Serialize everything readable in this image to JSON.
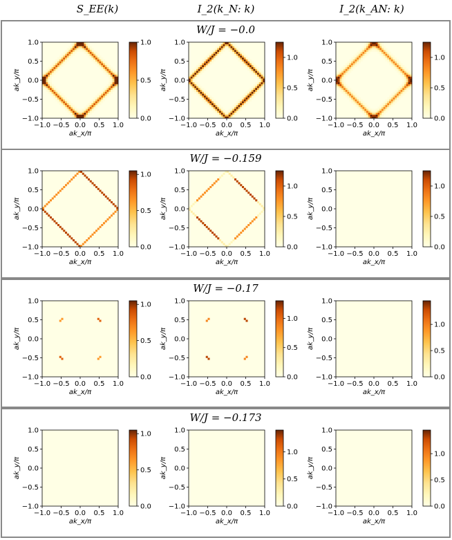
{
  "column_headers": [
    "S_EE(k)",
    "I_2(k_N: k)",
    "I_2(k_AN: k)"
  ],
  "colors": {
    "frame": "#888888",
    "cmap_low": "#ffffe5",
    "cmap_high": "#662506"
  },
  "chart_data": [
    {
      "type": "heatmap",
      "row_title": "W/J = −0.0",
      "panels": [
        {
          "column": "S_EE(k)",
          "pattern": "full_diamond",
          "hot_spots": "corners",
          "edge_level": 0.75,
          "vmax": 1.0,
          "colorbar_ticks": [
            "0.0",
            "0.5",
            "1.0"
          ]
        },
        {
          "column": "I_2(k_N: k)",
          "pattern": "full_diamond",
          "hot_spots": "edges",
          "edge_level": 0.9,
          "vmax": 1.25,
          "colorbar_ticks": [
            "0.0",
            "0.5",
            "1.0"
          ]
        },
        {
          "column": "I_2(k_AN: k)",
          "pattern": "full_diamond",
          "hot_spots": "corners",
          "edge_level": 0.6,
          "vmax": 1.25,
          "colorbar_ticks": [
            "0.0",
            "0.5",
            "1.0"
          ]
        }
      ]
    },
    {
      "type": "heatmap",
      "row_title": "W/J = −0.159",
      "panels": [
        {
          "column": "S_EE(k)",
          "pattern": "thin_diamond",
          "edge_level": 0.9,
          "vmax": 1.05,
          "colorbar_ticks": [
            "0.0",
            "0.5",
            "1.0"
          ]
        },
        {
          "column": "I_2(k_N: k)",
          "pattern": "thin_diamond_segments",
          "edge_level": 0.9,
          "vmax": 1.25,
          "colorbar_ticks": [
            "0.0",
            "0.5",
            "1.0"
          ]
        },
        {
          "column": "I_2(k_AN: k)",
          "pattern": "empty",
          "vmax": 1.25,
          "colorbar_ticks": [
            "0.0",
            "0.5",
            "1.0"
          ]
        }
      ]
    },
    {
      "type": "heatmap",
      "row_title": "W/J = −0.17",
      "panels": [
        {
          "column": "S_EE(k)",
          "pattern": "nodal_points",
          "edge_level": 0.8,
          "vmax": 1.05,
          "colorbar_ticks": [
            "0.0",
            "0.5",
            "1.0"
          ]
        },
        {
          "column": "I_2(k_N: k)",
          "pattern": "nodal_points",
          "edge_level": 0.9,
          "vmax": 1.3,
          "colorbar_ticks": [
            "0.0",
            "0.5",
            "1.0"
          ]
        },
        {
          "column": "I_2(k_AN: k)",
          "pattern": "empty",
          "vmax": 1.45,
          "colorbar_ticks": [
            "0.0",
            "0.5",
            "1.0"
          ]
        }
      ]
    },
    {
      "type": "heatmap",
      "row_title": "W/J = −0.173",
      "panels": [
        {
          "column": "S_EE(k)",
          "pattern": "empty",
          "vmax": 1.05,
          "colorbar_ticks": [
            "0.0",
            "0.5",
            "1.0"
          ]
        },
        {
          "column": "I_2(k_N: k)",
          "pattern": "empty",
          "vmax": 1.4,
          "colorbar_ticks": [
            "0.0",
            "0.5",
            "1.0"
          ]
        },
        {
          "column": "I_2(k_AN: k)",
          "pattern": "empty",
          "vmax": 1.45,
          "colorbar_ticks": [
            "0.0",
            "0.5",
            "1.0"
          ]
        }
      ]
    }
  ],
  "axes": {
    "xlabel": "ak_x/π",
    "ylabel": "ak_y/π",
    "xlim": [
      -1.0,
      1.0
    ],
    "ylim": [
      -1.0,
      1.0
    ],
    "xticks": [
      "−1.0",
      "−0.5",
      "0.0",
      "0.5",
      "1.0"
    ],
    "yticks": [
      "−1.0",
      "−0.5",
      "0.0",
      "0.5",
      "1.0"
    ]
  }
}
